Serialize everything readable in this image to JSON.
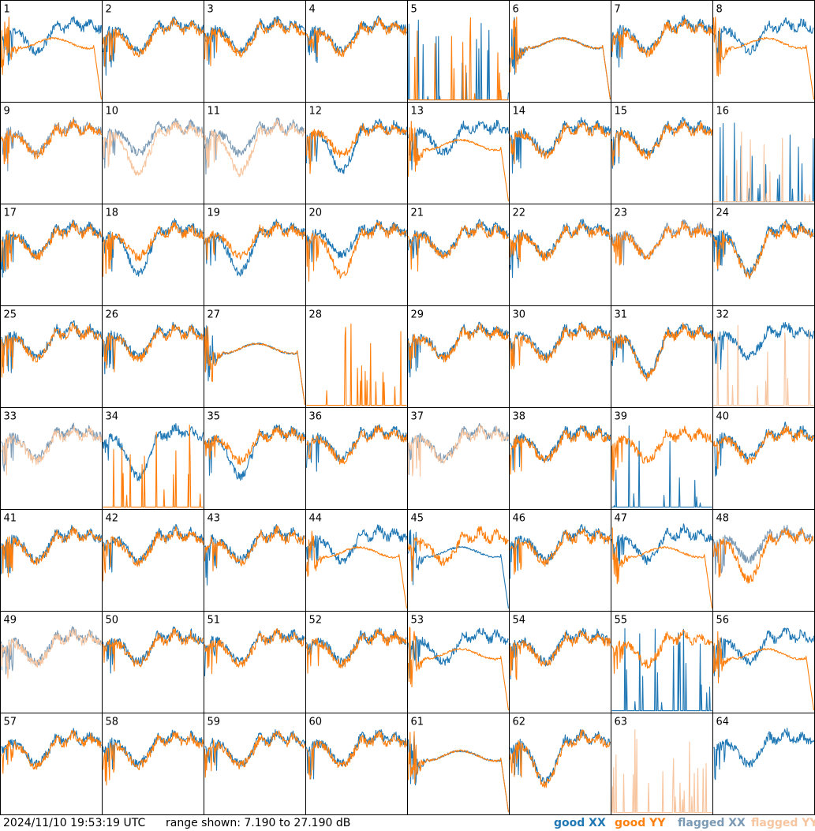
{
  "footer": {
    "timestamp": "2024/11/10 19:53:19 UTC",
    "range_text": "range shown: 7.190 to 27.190 dB"
  },
  "chart_data": {
    "type": "line",
    "grid": {
      "rows": 8,
      "cols": 8
    },
    "panel_labels": [
      "1",
      "2",
      "3",
      "4",
      "5",
      "6",
      "7",
      "8",
      "9",
      "10",
      "11",
      "12",
      "13",
      "14",
      "15",
      "16",
      "17",
      "18",
      "19",
      "20",
      "21",
      "22",
      "23",
      "24",
      "25",
      "26",
      "27",
      "28",
      "29",
      "30",
      "31",
      "32",
      "33",
      "34",
      "35",
      "36",
      "37",
      "38",
      "39",
      "40",
      "41",
      "42",
      "43",
      "44",
      "45",
      "46",
      "47",
      "48",
      "49",
      "50",
      "51",
      "52",
      "53",
      "54",
      "55",
      "56",
      "57",
      "58",
      "59",
      "60",
      "61",
      "62",
      "63",
      "64"
    ],
    "y_range_db": [
      7.19,
      27.19
    ],
    "legend": [
      {
        "name": "good XX",
        "color": "#1f77b4"
      },
      {
        "name": "good YY",
        "color": "#ff7f0e"
      },
      {
        "name": "flagged XX",
        "color": "#7b9ab5"
      },
      {
        "name": "flagged YY",
        "color": "#f7c59f"
      }
    ],
    "series_status": {
      "flagged_xx": [
        9,
        10,
        11,
        23,
        33,
        37,
        48,
        49
      ],
      "flagged_yy": [
        10,
        11,
        16,
        32,
        33,
        37,
        49,
        63,
        64
      ],
      "missing_xx": [
        28,
        63
      ],
      "missing_yy": [
        64
      ],
      "yy_rolloff": [
        1,
        6,
        8,
        13,
        27,
        44,
        47,
        53,
        56,
        61
      ],
      "xx_rolloff": [
        6,
        27,
        45,
        61
      ],
      "xx_spiky": [
        5,
        16,
        39,
        55
      ],
      "yy_spiky": [
        5,
        16,
        28,
        32,
        34,
        63
      ],
      "xx_dip": [
        5,
        12,
        18,
        19,
        24,
        31,
        34,
        35,
        45,
        62
      ],
      "yy_dip": [
        10,
        11,
        20,
        24,
        31,
        32,
        34,
        48,
        62
      ]
    }
  }
}
